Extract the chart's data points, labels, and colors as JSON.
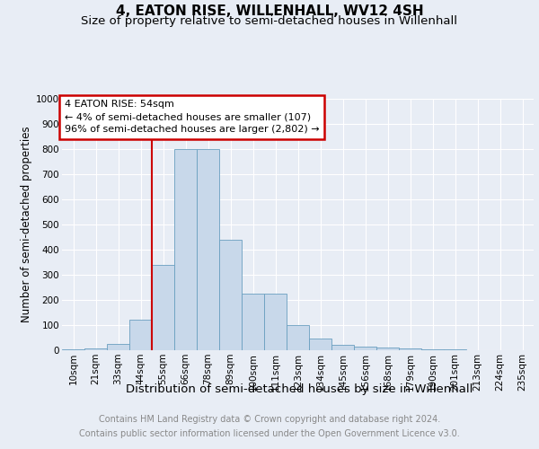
{
  "title": "4, EATON RISE, WILLENHALL, WV12 4SH",
  "subtitle": "Size of property relative to semi-detached houses in Willenhall",
  "xlabel": "Distribution of semi-detached houses by size in Willenhall",
  "ylabel": "Number of semi-detached properties",
  "footer_line1": "Contains HM Land Registry data © Crown copyright and database right 2024.",
  "footer_line2": "Contains public sector information licensed under the Open Government Licence v3.0.",
  "bar_labels": [
    "10sqm",
    "21sqm",
    "33sqm",
    "44sqm",
    "55sqm",
    "66sqm",
    "78sqm",
    "89sqm",
    "100sqm",
    "111sqm",
    "123sqm",
    "134sqm",
    "145sqm",
    "156sqm",
    "168sqm",
    "179sqm",
    "190sqm",
    "201sqm",
    "213sqm",
    "224sqm",
    "235sqm"
  ],
  "bar_values": [
    3,
    8,
    25,
    120,
    340,
    800,
    800,
    440,
    225,
    225,
    100,
    47,
    20,
    15,
    12,
    8,
    5,
    2,
    1,
    1,
    0
  ],
  "bar_color": "#c8d8ea",
  "bar_edge_color": "#6a9fc0",
  "annotation_line1": "4 EATON RISE: 54sqm",
  "annotation_line2": "← 4% of semi-detached houses are smaller (107)",
  "annotation_line3": "96% of semi-detached houses are larger (2,802) →",
  "vline_bar_index": 4,
  "vline_color": "#cc0000",
  "box_edgecolor": "#cc0000",
  "ylim": [
    0,
    1000
  ],
  "yticks": [
    0,
    100,
    200,
    300,
    400,
    500,
    600,
    700,
    800,
    900,
    1000
  ],
  "background_color": "#e8edf5",
  "grid_color": "#d0d8e8",
  "title_fontsize": 11,
  "subtitle_fontsize": 9.5,
  "xlabel_fontsize": 9.5,
  "ylabel_fontsize": 8.5,
  "tick_fontsize": 7.5,
  "footer_fontsize": 7,
  "annotation_fontsize": 8
}
